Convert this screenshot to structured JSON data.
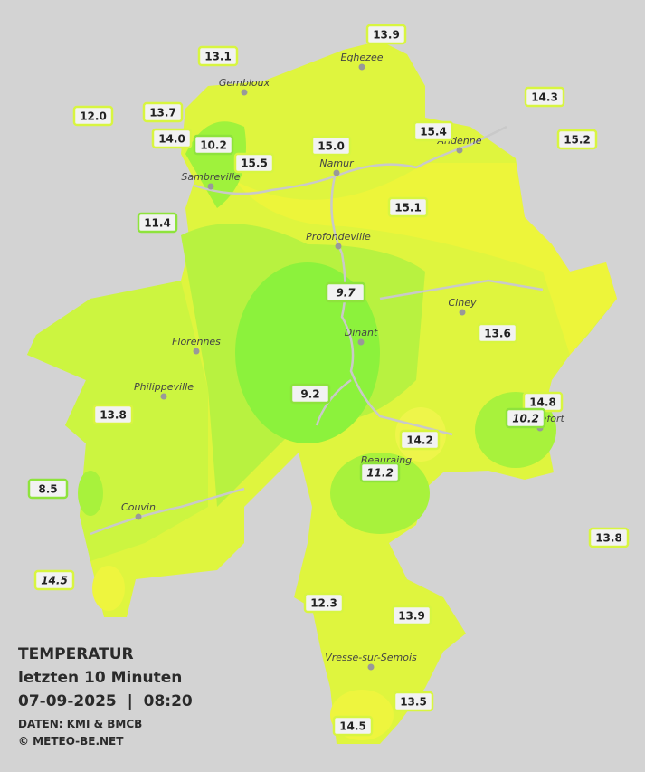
{
  "title": {
    "line1": "TEMPERATUR",
    "line2": "letzten 10 Minuten",
    "line3": "07-09-2025  |  08:20",
    "source": "DATEN: KMI & BMCB",
    "copyright": "© METEO-BE.NET"
  },
  "cities": [
    "Eghezee",
    "Gembloux",
    "Andenne",
    "Namur",
    "Sambreville",
    "Profondeville",
    "Ciney",
    "Dinant",
    "Florennes",
    "Philippeville",
    "Rochefort",
    "Beauraing",
    "Couvin",
    "Vresse-sur-Semois"
  ],
  "stations": [
    "13.9",
    "13.1",
    "14.3",
    "12.0",
    "13.7",
    "15.4",
    "15.2",
    "14.0",
    "10.2",
    "15.0",
    "15.5",
    "15.1",
    "11.4",
    "9.7",
    "13.6",
    "9.2",
    "14.8",
    "10.2",
    "13.8",
    "14.2",
    "11.2",
    "8.5",
    "13.8",
    "14.5",
    "12.3",
    "13.9",
    "13.5",
    "14.5"
  ]
}
